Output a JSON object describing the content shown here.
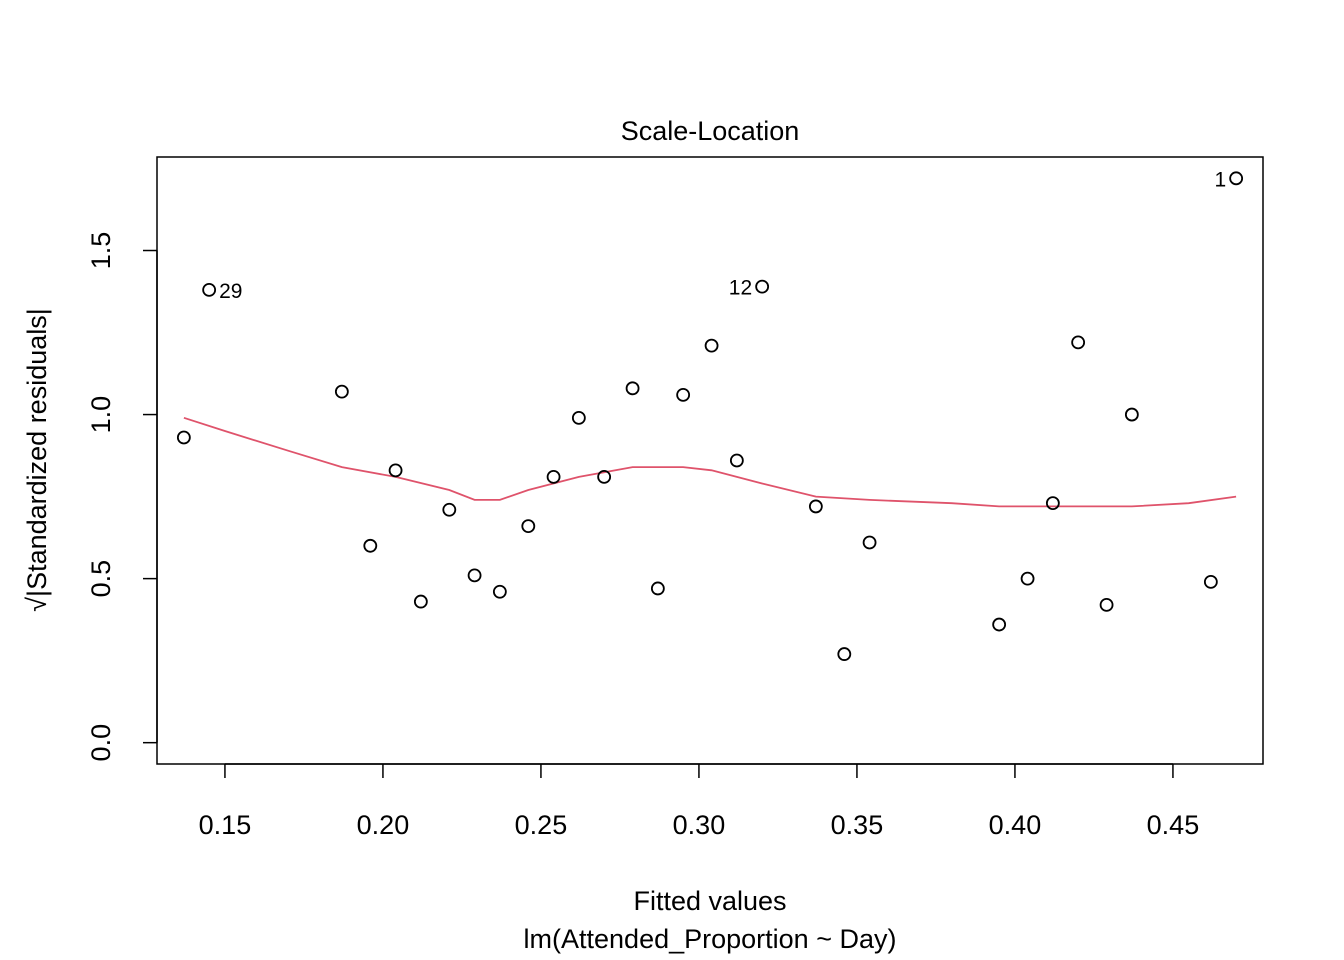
{
  "chart_data": {
    "type": "scatter",
    "title": "Scale-Location",
    "xlabel": "Fitted values",
    "subtitle": "lm(Attended_Proportion ~ Day)",
    "ylabel_radical": "√",
    "ylabel": "|Standardized residuals|",
    "xlim": [
      0.1285,
      0.4785
    ],
    "ylim": [
      -0.065,
      1.785
    ],
    "xticks": [
      "0.15",
      "0.20",
      "0.25",
      "0.30",
      "0.35",
      "0.40",
      "0.45"
    ],
    "xtick_values": [
      0.15,
      0.2,
      0.25,
      0.3,
      0.35,
      0.4,
      0.45
    ],
    "yticks": [
      "0.0",
      "0.5",
      "1.0",
      "1.5"
    ],
    "ytick_values": [
      0.0,
      0.5,
      1.0,
      1.5
    ],
    "grid": false,
    "points": [
      {
        "x": 0.47,
        "y": 1.72,
        "label": "1"
      },
      {
        "x": 0.462,
        "y": 0.49
      },
      {
        "x": 0.437,
        "y": 1.0
      },
      {
        "x": 0.429,
        "y": 0.42
      },
      {
        "x": 0.42,
        "y": 1.22
      },
      {
        "x": 0.412,
        "y": 0.73
      },
      {
        "x": 0.404,
        "y": 0.5
      },
      {
        "x": 0.395,
        "y": 0.36
      },
      {
        "x": 0.354,
        "y": 0.61
      },
      {
        "x": 0.346,
        "y": 0.27
      },
      {
        "x": 0.337,
        "y": 0.72
      },
      {
        "x": 0.32,
        "y": 1.39,
        "label": "12"
      },
      {
        "x": 0.312,
        "y": 0.86
      },
      {
        "x": 0.304,
        "y": 1.21
      },
      {
        "x": 0.295,
        "y": 1.06
      },
      {
        "x": 0.287,
        "y": 0.47
      },
      {
        "x": 0.279,
        "y": 1.08
      },
      {
        "x": 0.27,
        "y": 0.81
      },
      {
        "x": 0.262,
        "y": 0.99
      },
      {
        "x": 0.254,
        "y": 0.81
      },
      {
        "x": 0.246,
        "y": 0.66
      },
      {
        "x": 0.237,
        "y": 0.46
      },
      {
        "x": 0.229,
        "y": 0.51
      },
      {
        "x": 0.221,
        "y": 0.71
      },
      {
        "x": 0.212,
        "y": 0.43
      },
      {
        "x": 0.204,
        "y": 0.83
      },
      {
        "x": 0.196,
        "y": 0.6
      },
      {
        "x": 0.187,
        "y": 1.07
      },
      {
        "x": 0.145,
        "y": 1.38,
        "label": "29"
      },
      {
        "x": 0.137,
        "y": 0.93
      }
    ],
    "smooth": {
      "color": "#DF536B",
      "x": [
        0.137,
        0.15,
        0.17,
        0.187,
        0.204,
        0.221,
        0.229,
        0.237,
        0.246,
        0.262,
        0.279,
        0.295,
        0.304,
        0.32,
        0.337,
        0.354,
        0.38,
        0.395,
        0.42,
        0.437,
        0.455,
        0.47
      ],
      "y": [
        0.99,
        0.95,
        0.89,
        0.84,
        0.81,
        0.77,
        0.74,
        0.74,
        0.77,
        0.81,
        0.84,
        0.84,
        0.83,
        0.79,
        0.75,
        0.74,
        0.73,
        0.72,
        0.72,
        0.72,
        0.73,
        0.75
      ]
    }
  }
}
